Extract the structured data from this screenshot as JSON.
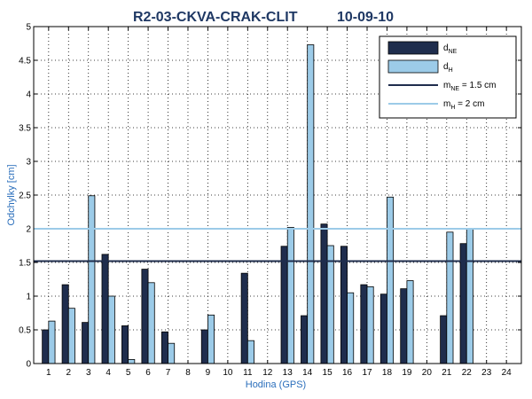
{
  "chart_data": {
    "type": "bar",
    "title_left": "R2-03-CKVA-CRAK-CLIT",
    "title_right": "10-09-10",
    "xlabel": "Hodina (GPS)",
    "ylabel": "Odchylky [cm]",
    "ylim": [
      0,
      5
    ],
    "yticks": [
      "0",
      "0.5",
      "1",
      "1.5",
      "2",
      "2.5",
      "3",
      "3.5",
      "4",
      "4.5",
      "5"
    ],
    "categories": [
      "1",
      "2",
      "3",
      "4",
      "5",
      "6",
      "7",
      "8",
      "9",
      "10",
      "11",
      "12",
      "13",
      "14",
      "15",
      "16",
      "17",
      "18",
      "19",
      "20",
      "21",
      "22",
      "23",
      "24"
    ],
    "grid": true,
    "legend_position": "top-right",
    "series": [
      {
        "name": "d",
        "name_sub": "NE",
        "color": "#1f2d4d",
        "values": [
          0.5,
          1.17,
          0.61,
          1.62,
          0.56,
          1.4,
          0.47,
          null,
          0.5,
          null,
          1.34,
          null,
          1.74,
          0.71,
          2.07,
          1.74,
          1.17,
          1.03,
          1.11,
          null,
          0.71,
          1.78,
          null,
          null
        ]
      },
      {
        "name": "d",
        "name_sub": "H",
        "color": "#9ccbe8",
        "values": [
          0.63,
          0.82,
          2.49,
          1.0,
          0.06,
          1.2,
          0.3,
          null,
          0.72,
          null,
          0.34,
          null,
          2.02,
          4.73,
          1.75,
          1.05,
          1.14,
          2.47,
          1.23,
          null,
          1.95,
          2.0,
          null,
          null
        ]
      }
    ],
    "reference_lines": [
      {
        "label": "m",
        "label_sub": "NE",
        "label_rest": " = 1.5 cm",
        "value": 1.52,
        "color": "#1f2d4d"
      },
      {
        "label": "m",
        "label_sub": "H",
        "label_rest": "  = 2 cm",
        "value": 2.0,
        "color": "#9ccbe8"
      }
    ]
  }
}
